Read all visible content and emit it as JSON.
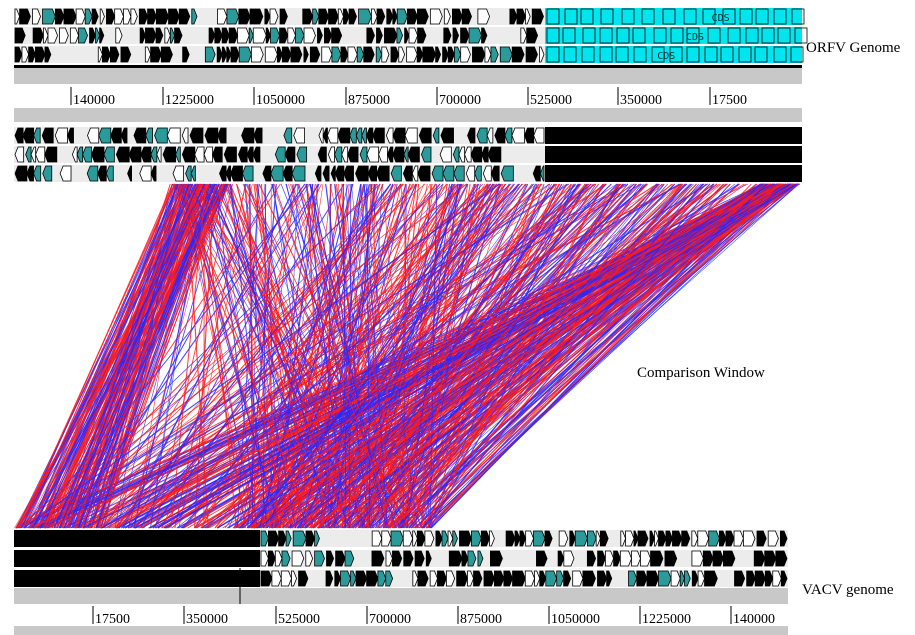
{
  "labels": {
    "orfv": "ORFV Genome",
    "comparison": "Comparison Window",
    "vacv": "VACV genome"
  },
  "top_ruler": {
    "ticks": [
      "140000",
      "1225000",
      "1050000",
      "875000",
      "700000",
      "525000",
      "350000",
      "17500"
    ]
  },
  "bottom_ruler": {
    "ticks": [
      "17500",
      "350000",
      "525000",
      "700000",
      "875000",
      "1050000",
      "1225000",
      "140000"
    ]
  },
  "feature_text": "CDS",
  "colors": {
    "cds_cyan": "#00e5ee",
    "feature_teal": "#2a9a9a",
    "track_bg": "#ececec",
    "ruler_bar": "#c8c8c8",
    "match_forward": "#ff1a1a",
    "match_reverse": "#2828ff"
  },
  "icons": {
    "forward_feature": "right-arrow-icon",
    "reverse_feature": "left-arrow-icon"
  }
}
